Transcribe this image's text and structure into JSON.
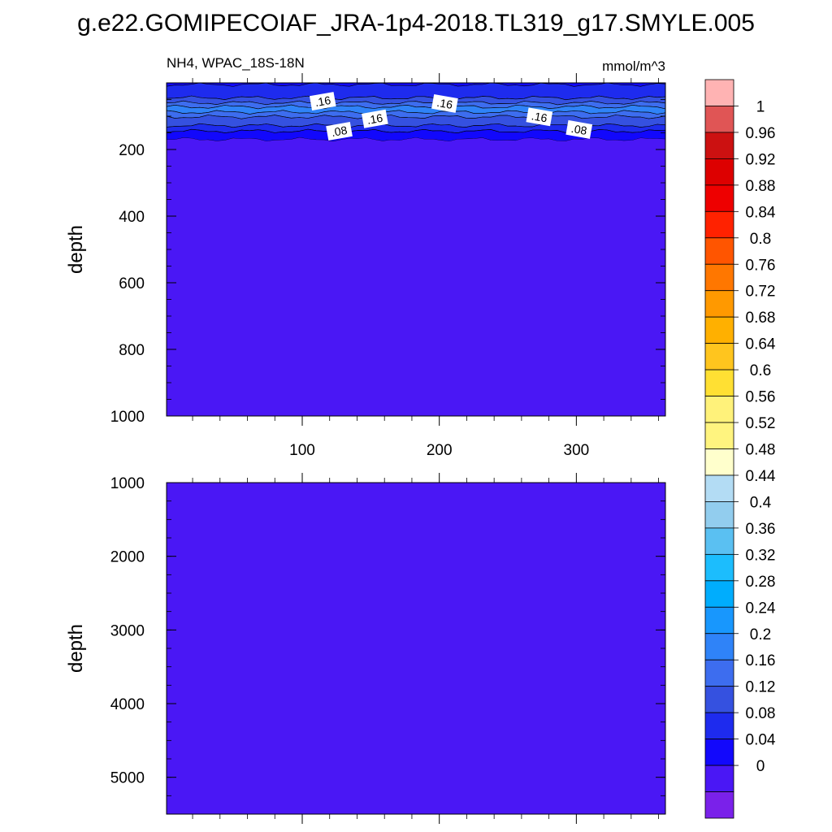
{
  "title": "g.e22.GOMIPECOIAF_JRA-1p4-2018.TL319_g17.SMYLE.005",
  "colors": {
    "background": "#ffffff",
    "low_fill": "#4a17f5",
    "contour_line": "#000000"
  },
  "chart_data": [
    {
      "type": "heatmap",
      "panel": "upper",
      "subtitle_left": "NH4, WPAC_18S-18N",
      "subtitle_right": "mmol/m^3",
      "ylabel": "depth",
      "xlabel": "",
      "xlim": [
        1,
        365
      ],
      "ylim": [
        0,
        1000
      ],
      "y_reversed": true,
      "x_ticks": [
        100,
        200,
        300
      ],
      "x_tick_labels": [
        "100",
        "200",
        "300"
      ],
      "y_ticks": [
        200,
        400,
        600,
        800,
        1000
      ],
      "y_tick_labels": [
        "200",
        "400",
        "600",
        "800",
        "1000"
      ],
      "layers": [
        {
          "depth_top": 0,
          "depth_bottom": 5,
          "value": 0.04
        },
        {
          "depth_top": 5,
          "depth_bottom": 45,
          "value": 0.08
        },
        {
          "depth_top": 45,
          "depth_bottom": 60,
          "value": 0.12
        },
        {
          "depth_top": 60,
          "depth_bottom": 72,
          "value": 0.16
        },
        {
          "depth_top": 72,
          "depth_bottom": 88,
          "value": 0.2
        },
        {
          "depth_top": 88,
          "depth_bottom": 102,
          "value": 0.16
        },
        {
          "depth_top": 102,
          "depth_bottom": 128,
          "value": 0.12
        },
        {
          "depth_top": 128,
          "depth_bottom": 145,
          "value": 0.08
        },
        {
          "depth_top": 145,
          "depth_bottom": 170,
          "value": 0.04
        },
        {
          "depth_top": 170,
          "depth_bottom": 1000,
          "value": 0.0
        }
      ],
      "contour_labels": [
        {
          "text": ".16",
          "x": 115,
          "depth": 55
        },
        {
          "text": ".16",
          "x": 204,
          "depth": 62
        },
        {
          "text": ".16",
          "x": 153,
          "depth": 108
        },
        {
          "text": ".16",
          "x": 273,
          "depth": 102
        },
        {
          "text": ".08",
          "x": 127,
          "depth": 145
        },
        {
          "text": ".08",
          "x": 302,
          "depth": 140
        }
      ]
    },
    {
      "type": "heatmap",
      "panel": "lower",
      "ylabel": "depth",
      "xlabel": "",
      "xlim": [
        1,
        365
      ],
      "ylim": [
        1000,
        5500
      ],
      "y_reversed": true,
      "x_ticks": [
        100,
        200,
        300
      ],
      "y_ticks": [
        1000,
        2000,
        3000,
        4000,
        5000
      ],
      "y_tick_labels": [
        "1000",
        "2000",
        "3000",
        "4000",
        "5000"
      ],
      "layers": [
        {
          "depth_top": 1000,
          "depth_bottom": 5500,
          "value": 0.0
        }
      ]
    }
  ],
  "colorbar": {
    "labels": [
      "1",
      "0.96",
      "0.92",
      "0.88",
      "0.84",
      "0.8",
      "0.76",
      "0.72",
      "0.68",
      "0.64",
      "0.6",
      "0.56",
      "0.52",
      "0.48",
      "0.44",
      "0.4",
      "0.36",
      "0.32",
      "0.28",
      "0.24",
      "0.2",
      "0.16",
      "0.12",
      "0.08",
      "0.04",
      "0"
    ],
    "level_values": [
      1,
      0.96,
      0.92,
      0.88,
      0.84,
      0.8,
      0.76,
      0.72,
      0.68,
      0.64,
      0.6,
      0.56,
      0.52,
      0.48,
      0.44,
      0.4,
      0.36,
      0.32,
      0.28,
      0.24,
      0.2,
      0.16,
      0.12,
      0.08,
      0.04,
      0
    ],
    "colors_top_to_bottom": [
      "#ffb3b3",
      "#e05555",
      "#cc1111",
      "#dd0000",
      "#ee0000",
      "#ff2200",
      "#ff5500",
      "#ff7700",
      "#ff9900",
      "#ffb000",
      "#ffc51e",
      "#ffe033",
      "#fff27a",
      "#fff47f",
      "#ffffcc",
      "#b3dcf4",
      "#92cdee",
      "#5ac0f2",
      "#1cbdfd",
      "#00adfd",
      "#1897fd",
      "#2f83f8",
      "#3d6def",
      "#3551e0",
      "#1e2bee",
      "#1208fc",
      "#4a17f5",
      "#7a21ea"
    ]
  }
}
